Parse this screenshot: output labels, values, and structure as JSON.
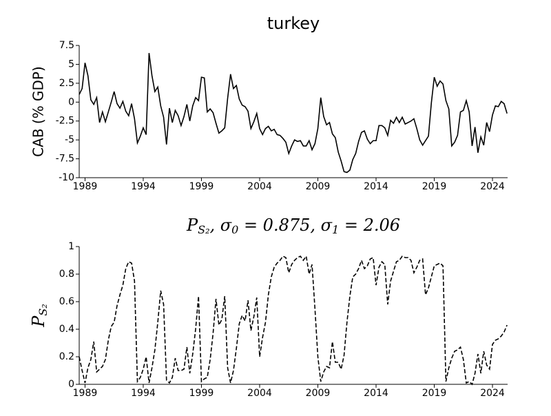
{
  "chart_data": [
    {
      "type": "line",
      "title": "turkey",
      "ylabel": "CAB (% GDP)",
      "linestyle": "solid",
      "color": "#000000",
      "xlim": [
        1988.5,
        2025.3
      ],
      "xticks": [
        1989,
        1994,
        1999,
        2004,
        2009,
        2014,
        2019,
        2024
      ],
      "ylim": [
        -10,
        7.5
      ],
      "yticks": [
        -10,
        -7.5,
        -5,
        -2.5,
        0,
        2.5,
        5,
        7.5
      ],
      "x": [
        1988.5,
        1988.75,
        1989,
        1989.25,
        1989.5,
        1989.75,
        1990,
        1990.25,
        1990.5,
        1990.75,
        1991,
        1991.25,
        1991.5,
        1991.75,
        1992,
        1992.25,
        1992.5,
        1992.75,
        1993,
        1993.25,
        1993.5,
        1993.75,
        1994,
        1994.25,
        1994.5,
        1994.75,
        1995,
        1995.25,
        1995.5,
        1995.75,
        1996,
        1996.25,
        1996.5,
        1996.75,
        1997,
        1997.25,
        1997.5,
        1997.75,
        1998,
        1998.25,
        1998.5,
        1998.75,
        1999,
        1999.25,
        1999.5,
        1999.75,
        2000,
        2000.25,
        2000.5,
        2000.75,
        2001,
        2001.25,
        2001.5,
        2001.75,
        2002,
        2002.25,
        2002.5,
        2002.75,
        2003,
        2003.25,
        2003.5,
        2003.75,
        2004,
        2004.25,
        2004.5,
        2004.75,
        2005,
        2005.25,
        2005.5,
        2005.75,
        2006,
        2006.25,
        2006.5,
        2006.75,
        2007,
        2007.25,
        2007.5,
        2007.75,
        2008,
        2008.25,
        2008.5,
        2008.75,
        2009,
        2009.25,
        2009.5,
        2009.75,
        2010,
        2010.25,
        2010.5,
        2010.75,
        2011,
        2011.25,
        2011.5,
        2011.75,
        2012,
        2012.25,
        2012.5,
        2012.75,
        2013,
        2013.25,
        2013.5,
        2013.75,
        2014,
        2014.25,
        2014.5,
        2014.75,
        2015,
        2015.25,
        2015.5,
        2015.75,
        2016,
        2016.25,
        2016.5,
        2016.75,
        2017,
        2017.25,
        2017.5,
        2017.75,
        2018,
        2018.25,
        2018.5,
        2018.75,
        2019,
        2019.25,
        2019.5,
        2019.75,
        2020,
        2020.25,
        2020.5,
        2020.75,
        2021,
        2021.25,
        2021.5,
        2021.75,
        2022,
        2022.25,
        2022.5,
        2022.75,
        2023,
        2023.25,
        2023.5,
        2023.75,
        2024,
        2024.25,
        2024.5,
        2024.75,
        2025,
        2025.25
      ],
      "values": [
        1.0,
        1.8,
        5.2,
        3.5,
        0.3,
        -0.3,
        0.6,
        -2.7,
        -1.3,
        -2.6,
        -1.3,
        0,
        1.4,
        -0.2,
        -0.8,
        0.1,
        -1.2,
        -1.8,
        -0.2,
        -2.2,
        -5.4,
        -4.5,
        -3.4,
        -4.3,
        6.5,
        3.5,
        1.4,
        2.0,
        -0.5,
        -2.0,
        -5.6,
        -0.8,
        -2.7,
        -1.1,
        -1.8,
        -3.1,
        -1.9,
        -0.3,
        -2.5,
        -0.5,
        0.6,
        0.2,
        3.3,
        3.2,
        -1.3,
        -0.9,
        -1.4,
        -2.8,
        -4.1,
        -3.8,
        -3.4,
        0.5,
        3.7,
        1.8,
        2.2,
        0.4,
        -0.4,
        -0.6,
        -1.2,
        -3.5,
        -2.6,
        -1.5,
        -3.5,
        -4.3,
        -3.5,
        -3.2,
        -3.8,
        -3.6,
        -4.3,
        -4.4,
        -4.8,
        -5.3,
        -6.8,
        -5.8,
        -5.0,
        -5.2,
        -5.1,
        -5.8,
        -5.8,
        -5.1,
        -6.3,
        -5.5,
        -3.5,
        0.6,
        -1.9,
        -3.0,
        -2.7,
        -4.2,
        -4.7,
        -6.6,
        -7.8,
        -9.2,
        -9.3,
        -9.0,
        -7.6,
        -6.8,
        -5.2,
        -4.0,
        -3.8,
        -4.9,
        -5.5,
        -5.1,
        -5.1,
        -3.1,
        -3.1,
        -3.4,
        -4.4,
        -2.4,
        -2.8,
        -2.0,
        -2.7,
        -2.0,
        -2.9,
        -2.7,
        -2.5,
        -2.2,
        -3.5,
        -5.0,
        -5.7,
        -5.1,
        -4.5,
        -0.1,
        3.3,
        2.1,
        2.8,
        2.4,
        0.2,
        -0.9,
        -5.8,
        -5.3,
        -4.4,
        -1.3,
        -1.1,
        0.2,
        -1.3,
        -5.8,
        -3.3,
        -6.7,
        -4.6,
        -5.7,
        -2.7,
        -3.9,
        -1.7,
        -0.5,
        -0.6,
        0.1,
        -0.2,
        -1.5
      ]
    },
    {
      "type": "line",
      "title": [
        "P",
        "S₂",
        ", σ",
        "0",
        " = 0.875, σ",
        "1",
        " = 2.06"
      ],
      "ylabel": [
        "P",
        "S₂"
      ],
      "linestyle": "dashed",
      "color": "#000000",
      "xlim": [
        1988.5,
        2025.3
      ],
      "xticks": [
        1989,
        1994,
        1999,
        2004,
        2009,
        2014,
        2019,
        2024
      ],
      "ylim": [
        0,
        1
      ],
      "yticks": [
        0,
        0.2,
        0.4,
        0.6,
        0.8,
        1
      ],
      "x": [
        1988.5,
        1988.75,
        1989,
        1989.25,
        1989.5,
        1989.75,
        1990,
        1990.25,
        1990.5,
        1990.75,
        1991,
        1991.25,
        1991.5,
        1991.75,
        1992,
        1992.25,
        1992.5,
        1992.75,
        1993,
        1993.25,
        1993.5,
        1993.75,
        1994,
        1994.25,
        1994.5,
        1994.75,
        1995,
        1995.25,
        1995.5,
        1995.75,
        1996,
        1996.25,
        1996.5,
        1996.75,
        1997,
        1997.25,
        1997.5,
        1997.75,
        1998,
        1998.25,
        1998.5,
        1998.75,
        1999,
        1999.25,
        1999.5,
        1999.75,
        2000,
        2000.25,
        2000.5,
        2000.75,
        2001,
        2001.25,
        2001.5,
        2001.75,
        2002,
        2002.25,
        2002.5,
        2002.75,
        2003,
        2003.25,
        2003.5,
        2003.75,
        2004,
        2004.25,
        2004.5,
        2004.75,
        2005,
        2005.25,
        2005.5,
        2005.75,
        2006,
        2006.25,
        2006.5,
        2006.75,
        2007,
        2007.25,
        2007.5,
        2007.75,
        2008,
        2008.25,
        2008.5,
        2008.75,
        2009,
        2009.25,
        2009.5,
        2009.75,
        2010,
        2010.25,
        2010.5,
        2010.75,
        2011,
        2011.25,
        2011.5,
        2011.75,
        2012,
        2012.25,
        2012.5,
        2012.75,
        2013,
        2013.25,
        2013.5,
        2013.75,
        2014,
        2014.25,
        2014.5,
        2014.75,
        2015,
        2015.25,
        2015.5,
        2015.75,
        2016,
        2016.25,
        2016.5,
        2016.75,
        2017,
        2017.25,
        2017.5,
        2017.75,
        2018,
        2018.25,
        2018.5,
        2018.75,
        2019,
        2019.25,
        2019.5,
        2019.75,
        2020,
        2020.25,
        2020.5,
        2020.75,
        2021,
        2021.25,
        2021.5,
        2021.75,
        2022,
        2022.25,
        2022.5,
        2022.75,
        2023,
        2023.25,
        2023.5,
        2023.75,
        2024,
        2024.25,
        2024.5,
        2024.75,
        2025,
        2025.25
      ],
      "values": [
        0.2,
        0.1,
        0.01,
        0.12,
        0.18,
        0.31,
        0.09,
        0.11,
        0.13,
        0.18,
        0.32,
        0.42,
        0.45,
        0.57,
        0.65,
        0.72,
        0.84,
        0.89,
        0.88,
        0.75,
        0.02,
        0.05,
        0.11,
        0.2,
        0.01,
        0.12,
        0.25,
        0.45,
        0.68,
        0.58,
        0.03,
        0.01,
        0.05,
        0.19,
        0.1,
        0.1,
        0.11,
        0.27,
        0.08,
        0.22,
        0.4,
        0.64,
        0.02,
        0.04,
        0.05,
        0.18,
        0.37,
        0.62,
        0.43,
        0.47,
        0.64,
        0.12,
        0.01,
        0.1,
        0.26,
        0.44,
        0.5,
        0.46,
        0.61,
        0.39,
        0.49,
        0.63,
        0.2,
        0.34,
        0.45,
        0.65,
        0.78,
        0.85,
        0.88,
        0.9,
        0.93,
        0.92,
        0.81,
        0.87,
        0.9,
        0.92,
        0.93,
        0.9,
        0.93,
        0.8,
        0.87,
        0.55,
        0.2,
        0.02,
        0.09,
        0.13,
        0.12,
        0.31,
        0.16,
        0.16,
        0.11,
        0.21,
        0.45,
        0.64,
        0.78,
        0.8,
        0.84,
        0.9,
        0.84,
        0.86,
        0.91,
        0.92,
        0.72,
        0.85,
        0.89,
        0.87,
        0.58,
        0.75,
        0.82,
        0.89,
        0.9,
        0.93,
        0.92,
        0.92,
        0.9,
        0.81,
        0.85,
        0.9,
        0.91,
        0.65,
        0.7,
        0.78,
        0.86,
        0.87,
        0.88,
        0.86,
        0.02,
        0.12,
        0.19,
        0.24,
        0.25,
        0.27,
        0.18,
        0.01,
        0.02,
        0,
        0.08,
        0.22,
        0.08,
        0.24,
        0.14,
        0.11,
        0.29,
        0.32,
        0.33,
        0.35,
        0.38,
        0.43
      ]
    }
  ]
}
